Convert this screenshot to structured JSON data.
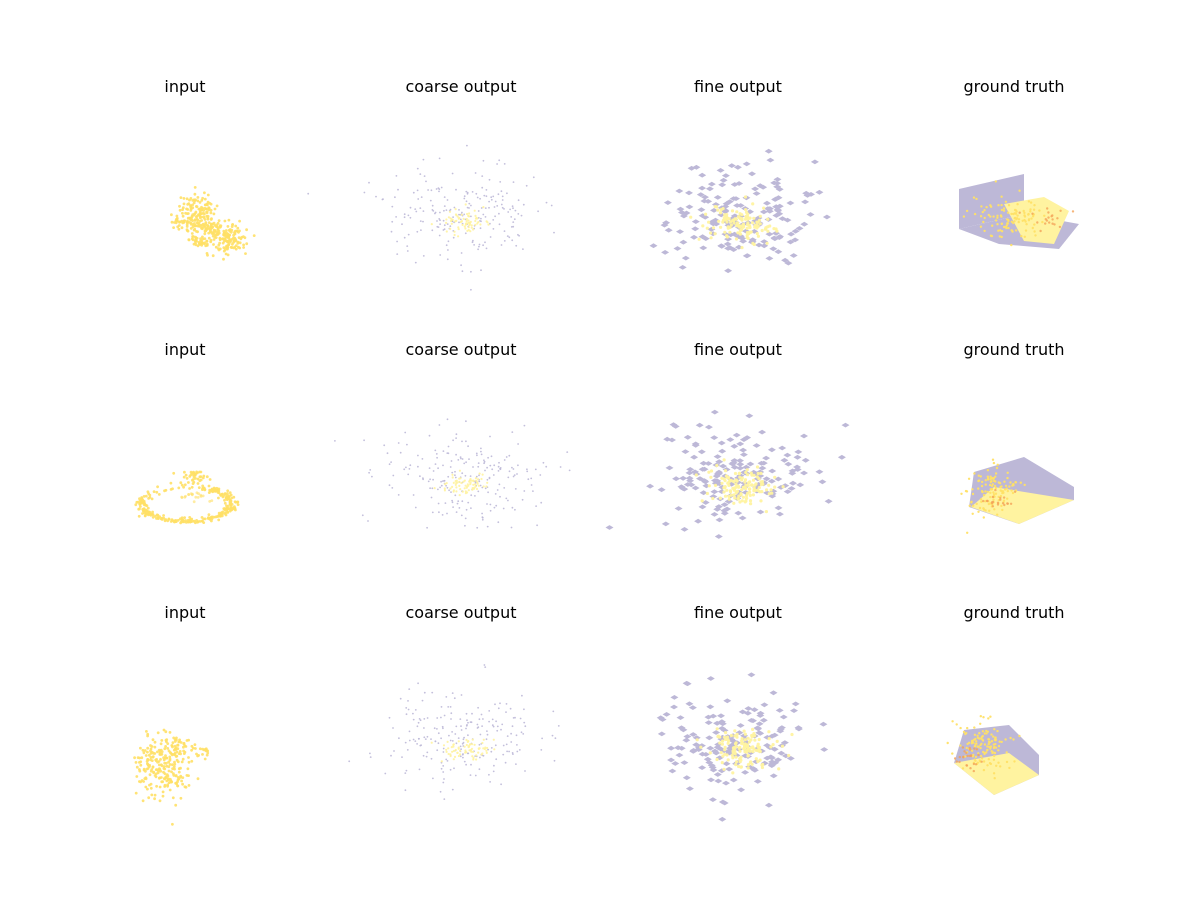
{
  "chart_data": {
    "type": "scatter",
    "layout": "3x4 grid of 3D point-cloud panels",
    "axes_visible": false,
    "colors": {
      "input": "#FFE066",
      "partial": "#FFF3A0",
      "predicted": "#BDB8D7",
      "highlight": "#F4A259"
    },
    "rows": [
      {
        "panels": [
          {
            "title": "input",
            "kind": "input",
            "shape": "chair-back"
          },
          {
            "title": "coarse output",
            "kind": "coarse"
          },
          {
            "title": "fine output",
            "kind": "fine"
          },
          {
            "title": "ground truth",
            "kind": "gt",
            "shape": "box-left"
          }
        ]
      },
      {
        "panels": [
          {
            "title": "input",
            "kind": "input",
            "shape": "ring"
          },
          {
            "title": "coarse output",
            "kind": "coarse"
          },
          {
            "title": "fine output",
            "kind": "fine"
          },
          {
            "title": "ground truth",
            "kind": "gt",
            "shape": "box-tray"
          }
        ]
      },
      {
        "panels": [
          {
            "title": "input",
            "kind": "input",
            "shape": "cluster"
          },
          {
            "title": "coarse output",
            "kind": "coarse"
          },
          {
            "title": "fine output",
            "kind": "fine"
          },
          {
            "title": "ground truth",
            "kind": "gt",
            "shape": "box-right"
          }
        ]
      }
    ]
  }
}
